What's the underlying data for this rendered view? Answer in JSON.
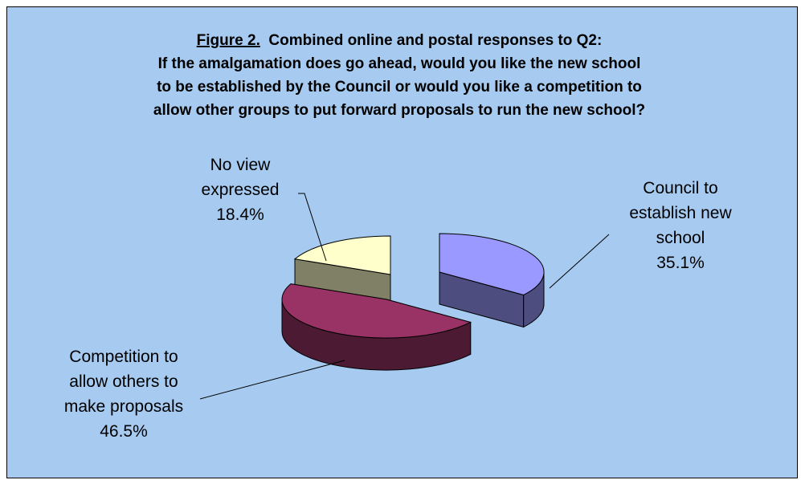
{
  "chart_data": {
    "type": "pie",
    "style": "3d-exploded",
    "title": {
      "figure_label": "Figure 2.",
      "line1_rest": "  Combined online and postal responses to Q2:",
      "line2": "If the amalgamation does go ahead, would you like the new school",
      "line3": "to be established by the Council  or would you like a competition to",
      "line4": "allow other groups to put forward proposals to run the new school?"
    },
    "slices": [
      {
        "label_lines": [
          "Council to",
          "establish new",
          "school"
        ],
        "percent_label": "35.1%",
        "value": 35.1,
        "top_color": "#9999ff",
        "side_color": "#4d4d80"
      },
      {
        "label_lines": [
          "Competition to",
          "allow others to",
          "make proposals"
        ],
        "percent_label": "46.5%",
        "value": 46.5,
        "top_color": "#993366",
        "side_color": "#4d1a33"
      },
      {
        "label_lines": [
          "No view",
          "expressed"
        ],
        "percent_label": "18.4%",
        "value": 18.4,
        "top_color": "#ffffcc",
        "side_color": "#808066"
      }
    ],
    "legend": "none",
    "background_color": "#a6caf0"
  }
}
